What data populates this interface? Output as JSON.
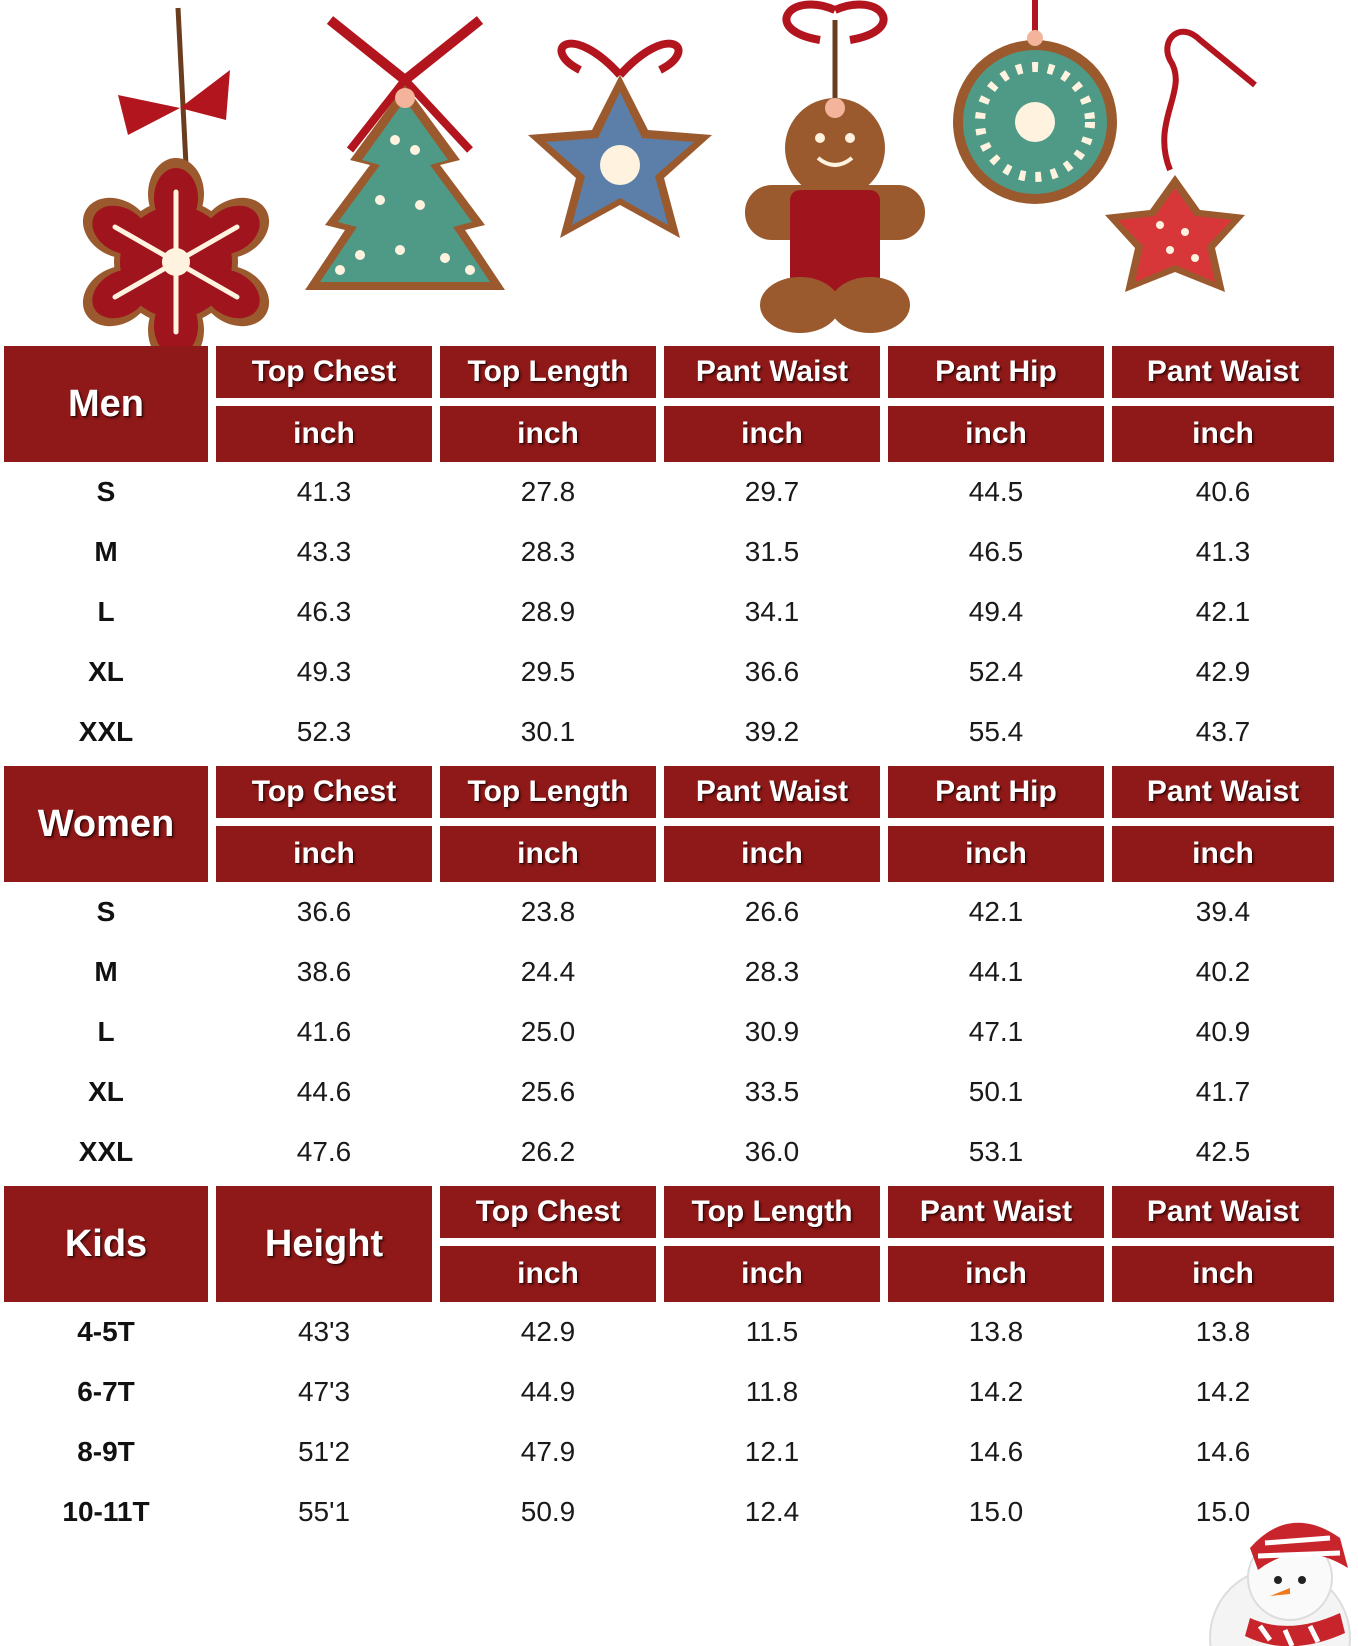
{
  "ornament_icons": [
    "snowflake-cookie-icon",
    "christmas-tree-cookie-icon",
    "star-cookie-icon",
    "gingerbread-man-icon",
    "round-ornament-cookie-icon",
    "small-star-cookie-icon"
  ],
  "colors": {
    "header_red": "#8f1818",
    "text": "#1a1a1a",
    "background": "#ffffff"
  },
  "unit": "inch",
  "men": {
    "label": "Men",
    "columns": [
      "Top Chest",
      "Top Length",
      "Pant Waist",
      "Pant Hip",
      "Pant Waist"
    ],
    "rows": [
      {
        "size": "S",
        "values": [
          "41.3",
          "27.8",
          "29.7",
          "44.5",
          "40.6"
        ]
      },
      {
        "size": "M",
        "values": [
          "43.3",
          "28.3",
          "31.5",
          "46.5",
          "41.3"
        ]
      },
      {
        "size": "L",
        "values": [
          "46.3",
          "28.9",
          "34.1",
          "49.4",
          "42.1"
        ]
      },
      {
        "size": "XL",
        "values": [
          "49.3",
          "29.5",
          "36.6",
          "52.4",
          "42.9"
        ]
      },
      {
        "size": "XXL",
        "values": [
          "52.3",
          "30.1",
          "39.2",
          "55.4",
          "43.7"
        ]
      }
    ]
  },
  "women": {
    "label": "Women",
    "columns": [
      "Top Chest",
      "Top Length",
      "Pant Waist",
      "Pant Hip",
      "Pant Waist"
    ],
    "rows": [
      {
        "size": "S",
        "values": [
          "36.6",
          "23.8",
          "26.6",
          "42.1",
          "39.4"
        ]
      },
      {
        "size": "M",
        "values": [
          "38.6",
          "24.4",
          "28.3",
          "44.1",
          "40.2"
        ]
      },
      {
        "size": "L",
        "values": [
          "41.6",
          "25.0",
          "30.9",
          "47.1",
          "40.9"
        ]
      },
      {
        "size": "XL",
        "values": [
          "44.6",
          "25.6",
          "33.5",
          "50.1",
          "41.7"
        ]
      },
      {
        "size": "XXL",
        "values": [
          "47.6",
          "26.2",
          "36.0",
          "53.1",
          "42.5"
        ]
      }
    ]
  },
  "kids": {
    "label": "Kids",
    "height_label": "Height",
    "columns": [
      "Top Chest",
      "Top Length",
      "Pant Waist",
      "Pant Waist"
    ],
    "rows": [
      {
        "size": "4-5T",
        "height": "43'3",
        "values": [
          "42.9",
          "11.5",
          "13.8",
          "13.8"
        ]
      },
      {
        "size": "6-7T",
        "height": "47'3",
        "values": [
          "44.9",
          "11.8",
          "14.2",
          "14.2"
        ]
      },
      {
        "size": "8-9T",
        "height": "51'2",
        "values": [
          "47.9",
          "12.1",
          "14.6",
          "14.6"
        ]
      },
      {
        "size": "10-11T",
        "height": "55'1",
        "values": [
          "50.9",
          "12.4",
          "15.0",
          "15.0"
        ]
      }
    ]
  }
}
